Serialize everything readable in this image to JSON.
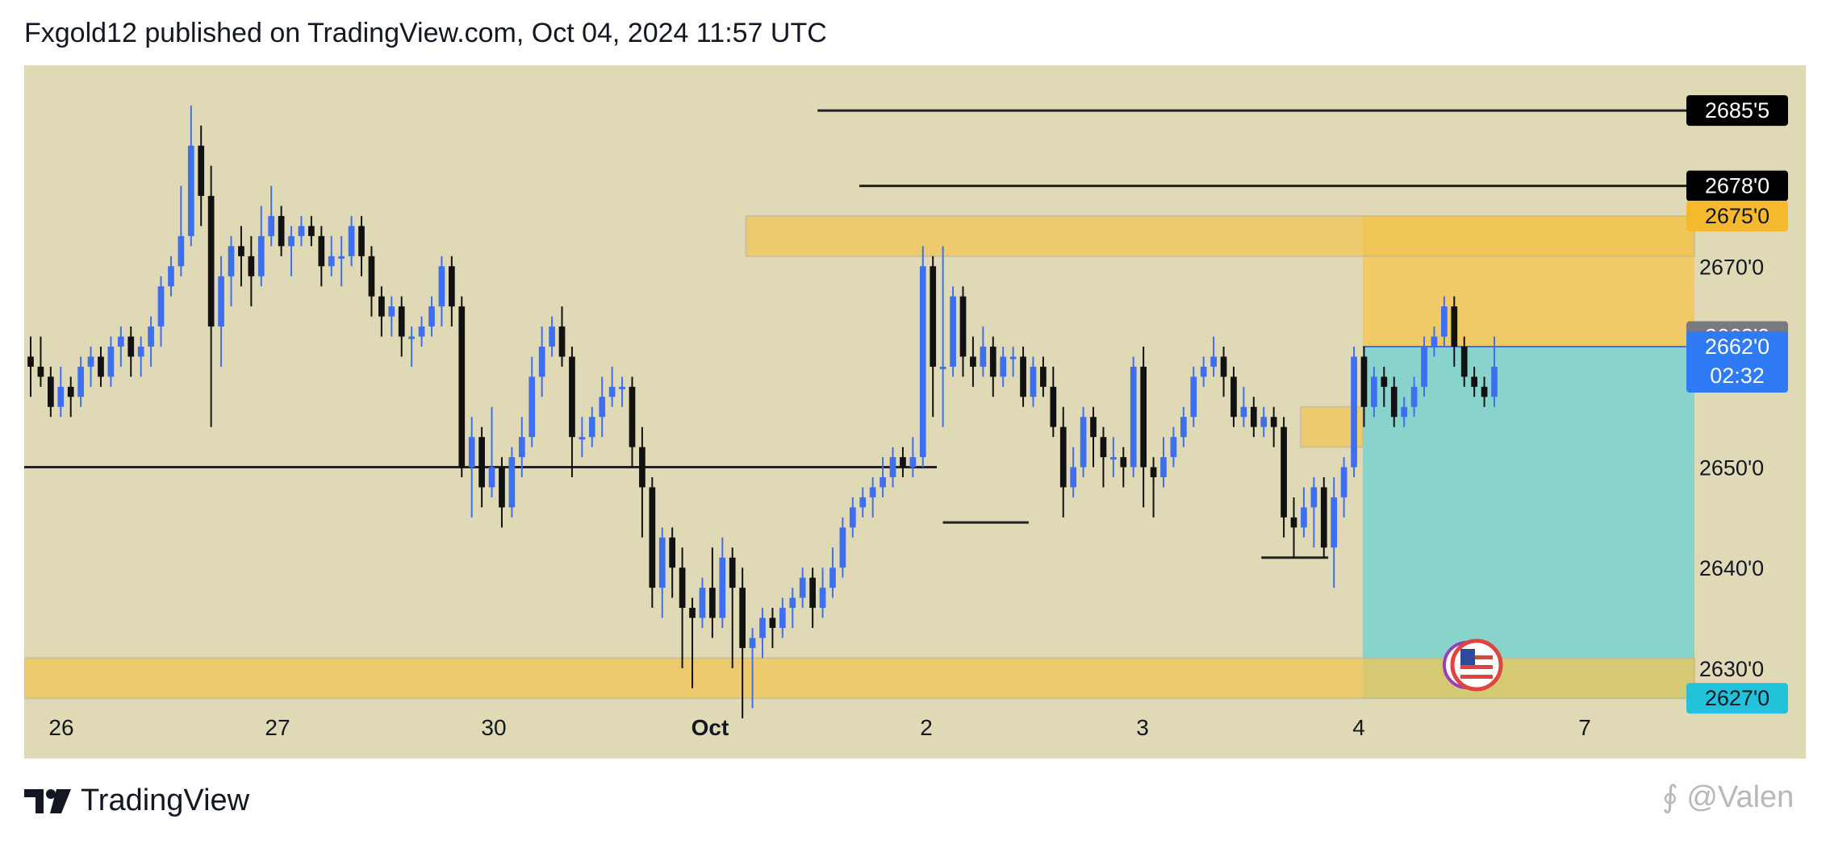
{
  "header": {
    "title": "Fxgold12 published on TradingView.com, Oct 04, 2024 11:57 UTC"
  },
  "footer": {
    "brand": "TradingView",
    "watermark": "@Valen"
  },
  "colors": {
    "background": "#dfd9b6",
    "up": "#3e6ff0",
    "down": "#111111",
    "zone": "#f3c553",
    "target": "#79d2d0"
  },
  "chart_data": {
    "type": "candlestick",
    "title": "",
    "x_ticks": [
      "26",
      "27",
      "30",
      "Oct",
      "2",
      "3",
      "4",
      "7"
    ],
    "y_ticks": [
      "2630'0",
      "2640'0",
      "2650'0",
      "2670'0"
    ],
    "price_labels": [
      {
        "text": "2685'5",
        "value": 2685.5,
        "style": "black"
      },
      {
        "text": "2678'0",
        "value": 2678.0,
        "style": "black"
      },
      {
        "text": "2675'0",
        "value": 2675.0,
        "style": "orange"
      },
      {
        "text": "2663'0",
        "value": 2663.0,
        "style": "gray"
      },
      {
        "text": "2662'0",
        "sub": "02:32",
        "value": 2662.0,
        "style": "blue"
      },
      {
        "text": "2627'0",
        "value": 2627.0,
        "style": "cyan"
      }
    ],
    "ylim": [
      2621,
      2690
    ],
    "zones": [
      {
        "from_day": 6.05,
        "to_day": 14.0,
        "low": 2671.0,
        "high": 2675.0
      },
      {
        "from_day": 0.0,
        "to_day": 14.0,
        "low": 2627.0,
        "high": 2631.0
      },
      {
        "from_day": 10.7,
        "to_day": 11.22,
        "low": 2652.0,
        "high": 2656.0
      }
    ],
    "position": {
      "from_day": 11.22,
      "to_day": 14.0,
      "entry": 2662.0,
      "stop": 2675.0,
      "target": 2627.0
    },
    "levels": [
      {
        "from_day": 6.65,
        "to_day": 14.0,
        "price": 2685.5
      },
      {
        "from_day": 7.0,
        "to_day": 14.0,
        "price": 2678.0
      },
      {
        "from_day": 0.0,
        "to_day": 7.65,
        "price": 2650.0
      },
      {
        "from_day": 7.7,
        "to_day": 8.42,
        "price": 2644.5
      },
      {
        "from_day": 10.37,
        "to_day": 10.93,
        "price": 2641.0
      }
    ],
    "candles": [
      [
        2661,
        2660,
        2663,
        2657
      ],
      [
        2660,
        2659,
        2663,
        2658
      ],
      [
        2659,
        2656,
        2660,
        2655
      ],
      [
        2656,
        2658,
        2660,
        2655
      ],
      [
        2658,
        2657,
        2659,
        2655
      ],
      [
        2657,
        2660,
        2661,
        2656
      ],
      [
        2660,
        2661,
        2662,
        2658
      ],
      [
        2661,
        2659,
        2662,
        2658
      ],
      [
        2659,
        2662,
        2663,
        2658
      ],
      [
        2662,
        2663,
        2664,
        2660
      ],
      [
        2663,
        2661,
        2664,
        2659
      ],
      [
        2661,
        2662,
        2663,
        2659
      ],
      [
        2662,
        2664,
        2665,
        2660
      ],
      [
        2664,
        2668,
        2669,
        2662
      ],
      [
        2668,
        2670,
        2671,
        2667
      ],
      [
        2670,
        2673,
        2678,
        2669
      ],
      [
        2673,
        2682,
        2686,
        2672
      ],
      [
        2682,
        2677,
        2684,
        2674
      ],
      [
        2677,
        2664,
        2680,
        2654
      ],
      [
        2664,
        2669,
        2671,
        2660
      ],
      [
        2669,
        2672,
        2673,
        2666
      ],
      [
        2672,
        2671,
        2674,
        2668
      ],
      [
        2671,
        2669,
        2673,
        2666
      ],
      [
        2669,
        2673,
        2676,
        2668
      ],
      [
        2673,
        2675,
        2678,
        2672
      ],
      [
        2675,
        2672,
        2676,
        2671
      ],
      [
        2672,
        2673,
        2674,
        2669
      ],
      [
        2673,
        2674,
        2675,
        2672
      ],
      [
        2674,
        2673,
        2675,
        2672
      ],
      [
        2673,
        2670,
        2674,
        2668
      ],
      [
        2670,
        2671,
        2673,
        2669
      ],
      [
        2671,
        2671,
        2673,
        2668
      ],
      [
        2671,
        2674,
        2675,
        2670
      ],
      [
        2674,
        2671,
        2675,
        2669
      ],
      [
        2671,
        2667,
        2672,
        2665
      ],
      [
        2667,
        2665,
        2668,
        2663
      ],
      [
        2665,
        2666,
        2667,
        2663
      ],
      [
        2666,
        2663,
        2667,
        2661
      ],
      [
        2663,
        2663,
        2664,
        2660
      ],
      [
        2663,
        2664,
        2665,
        2662
      ],
      [
        2664,
        2666,
        2667,
        2663
      ],
      [
        2666,
        2670,
        2671,
        2664
      ],
      [
        2670,
        2666,
        2671,
        2664
      ],
      [
        2666,
        2650,
        2667,
        2649
      ],
      [
        2650,
        2653,
        2655,
        2645
      ],
      [
        2653,
        2648,
        2654,
        2646
      ],
      [
        2648,
        2650,
        2656,
        2647
      ],
      [
        2650,
        2646,
        2651,
        2644
      ],
      [
        2646,
        2651,
        2652,
        2645
      ],
      [
        2651,
        2653,
        2655,
        2649
      ],
      [
        2653,
        2659,
        2661,
        2652
      ],
      [
        2659,
        2662,
        2664,
        2657
      ],
      [
        2662,
        2664,
        2665,
        2661
      ],
      [
        2664,
        2661,
        2666,
        2660
      ],
      [
        2661,
        2653,
        2662,
        2649
      ],
      [
        2653,
        2653,
        2655,
        2651
      ],
      [
        2653,
        2655,
        2656,
        2652
      ],
      [
        2655,
        2657,
        2659,
        2653
      ],
      [
        2657,
        2658,
        2660,
        2656
      ],
      [
        2658,
        2658,
        2659,
        2656
      ],
      [
        2658,
        2652,
        2659,
        2650
      ],
      [
        2652,
        2648,
        2654,
        2643
      ],
      [
        2648,
        2638,
        2649,
        2636
      ],
      [
        2638,
        2643,
        2644,
        2635
      ],
      [
        2643,
        2640,
        2644,
        2637
      ],
      [
        2640,
        2636,
        2642,
        2630
      ],
      [
        2636,
        2635,
        2637,
        2628
      ],
      [
        2635,
        2638,
        2639,
        2634
      ],
      [
        2638,
        2635,
        2642,
        2633
      ],
      [
        2635,
        2641,
        2643,
        2634
      ],
      [
        2641,
        2638,
        2642,
        2630
      ],
      [
        2638,
        2632,
        2640,
        2625
      ],
      [
        2632,
        2633,
        2634,
        2626
      ],
      [
        2633,
        2635,
        2636,
        2631
      ],
      [
        2635,
        2634,
        2636,
        2632
      ],
      [
        2634,
        2636,
        2637,
        2633
      ],
      [
        2636,
        2637,
        2638,
        2634
      ],
      [
        2637,
        2639,
        2640,
        2636
      ],
      [
        2639,
        2636,
        2640,
        2634
      ],
      [
        2636,
        2638,
        2640,
        2635
      ],
      [
        2638,
        2640,
        2642,
        2637
      ],
      [
        2640,
        2644,
        2645,
        2639
      ],
      [
        2644,
        2646,
        2647,
        2643
      ],
      [
        2646,
        2647,
        2648,
        2645
      ],
      [
        2647,
        2648,
        2649,
        2645
      ],
      [
        2648,
        2649,
        2651,
        2647
      ],
      [
        2649,
        2651,
        2652,
        2648
      ],
      [
        2651,
        2650,
        2652,
        2649
      ],
      [
        2650,
        2651,
        2653,
        2649
      ],
      [
        2651,
        2670,
        2672,
        2650
      ],
      [
        2670,
        2660,
        2671,
        2655
      ],
      [
        2660,
        2660,
        2672,
        2654
      ],
      [
        2660,
        2667,
        2668,
        2659
      ],
      [
        2667,
        2661,
        2668,
        2659
      ],
      [
        2661,
        2660,
        2663,
        2658
      ],
      [
        2660,
        2662,
        2664,
        2659
      ],
      [
        2662,
        2659,
        2663,
        2657
      ],
      [
        2659,
        2661,
        2662,
        2658
      ],
      [
        2661,
        2661,
        2662,
        2659
      ],
      [
        2661,
        2657,
        2662,
        2656
      ],
      [
        2657,
        2660,
        2661,
        2656
      ],
      [
        2660,
        2658,
        2661,
        2657
      ],
      [
        2658,
        2654,
        2660,
        2653
      ],
      [
        2654,
        2648,
        2656,
        2645
      ],
      [
        2648,
        2650,
        2652,
        2647
      ],
      [
        2650,
        2655,
        2656,
        2649
      ],
      [
        2655,
        2653,
        2656,
        2650
      ],
      [
        2653,
        2651,
        2654,
        2648
      ],
      [
        2651,
        2651,
        2653,
        2649
      ],
      [
        2651,
        2650,
        2652,
        2648
      ],
      [
        2650,
        2660,
        2661,
        2649
      ],
      [
        2660,
        2650,
        2662,
        2646
      ],
      [
        2650,
        2649,
        2651,
        2645
      ],
      [
        2649,
        2651,
        2653,
        2648
      ],
      [
        2651,
        2653,
        2654,
        2650
      ],
      [
        2653,
        2655,
        2656,
        2652
      ],
      [
        2655,
        2659,
        2660,
        2654
      ],
      [
        2659,
        2660,
        2661,
        2658
      ],
      [
        2660,
        2661,
        2663,
        2659
      ],
      [
        2661,
        2659,
        2662,
        2657
      ],
      [
        2659,
        2655,
        2660,
        2654
      ],
      [
        2655,
        2656,
        2658,
        2654
      ],
      [
        2656,
        2654,
        2657,
        2653
      ],
      [
        2654,
        2655,
        2656,
        2653
      ],
      [
        2655,
        2654,
        2656,
        2652
      ],
      [
        2654,
        2645,
        2655,
        2643
      ],
      [
        2645,
        2644,
        2647,
        2641
      ],
      [
        2644,
        2646,
        2648,
        2643
      ],
      [
        2646,
        2648,
        2649,
        2642
      ],
      [
        2648,
        2642,
        2649,
        2641
      ],
      [
        2642,
        2647,
        2649,
        2638
      ],
      [
        2647,
        2650,
        2651,
        2645
      ],
      [
        2650,
        2661,
        2662,
        2649
      ],
      [
        2661,
        2656,
        2662,
        2654
      ],
      [
        2656,
        2659,
        2660,
        2655
      ],
      [
        2659,
        2658,
        2660,
        2656
      ],
      [
        2658,
        2655,
        2659,
        2654
      ],
      [
        2655,
        2656,
        2657,
        2654
      ],
      [
        2656,
        2658,
        2659,
        2655
      ],
      [
        2658,
        2662,
        2663,
        2657
      ],
      [
        2662,
        2663,
        2664,
        2661
      ],
      [
        2663,
        2666,
        2667,
        2662
      ],
      [
        2666,
        2662,
        2667,
        2660
      ],
      [
        2662,
        2659,
        2663,
        2658
      ],
      [
        2659,
        2658,
        2660,
        2657
      ],
      [
        2658,
        2657,
        2659,
        2656
      ],
      [
        2657,
        2660,
        2663,
        2656
      ]
    ]
  }
}
